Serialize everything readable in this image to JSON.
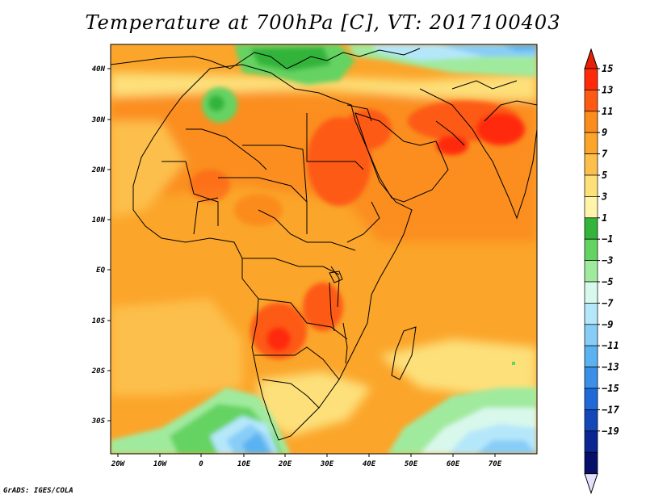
{
  "title": "Temperature at 700hPa [C], VT: 2017100403",
  "credit": "GrADS: IGES/COLA",
  "axes": {
    "x_ticks": [
      "20W",
      "10W",
      "0",
      "10E",
      "20E",
      "30E",
      "40E",
      "50E",
      "60E",
      "70E"
    ],
    "y_ticks": [
      "40N",
      "30N",
      "20N",
      "10N",
      "EQ",
      "10S",
      "20S",
      "30S"
    ]
  },
  "colorbar": {
    "labels": [
      "15",
      "13",
      "11",
      "9",
      "7",
      "5",
      "3",
      "1",
      "−1",
      "−3",
      "−5",
      "−7",
      "−9",
      "−11",
      "−13",
      "−15",
      "−17",
      "−19"
    ],
    "colors": [
      "#ff2a0a",
      "#fd5a14",
      "#fb8c1e",
      "#fba52a",
      "#fdbf4b",
      "#fde07a",
      "#fff4a8",
      "#33b43a",
      "#65d362",
      "#a0ea9e",
      "#d8f8ec",
      "#b5e7fa",
      "#88cdf7",
      "#5ab2f1",
      "#3b8fe6",
      "#2069d8",
      "#1447b8",
      "#0b2592",
      "#06106a"
    ],
    "top_arrow_color": "#e52006",
    "bottom_arrow_color": "#e4e0fc"
  }
}
